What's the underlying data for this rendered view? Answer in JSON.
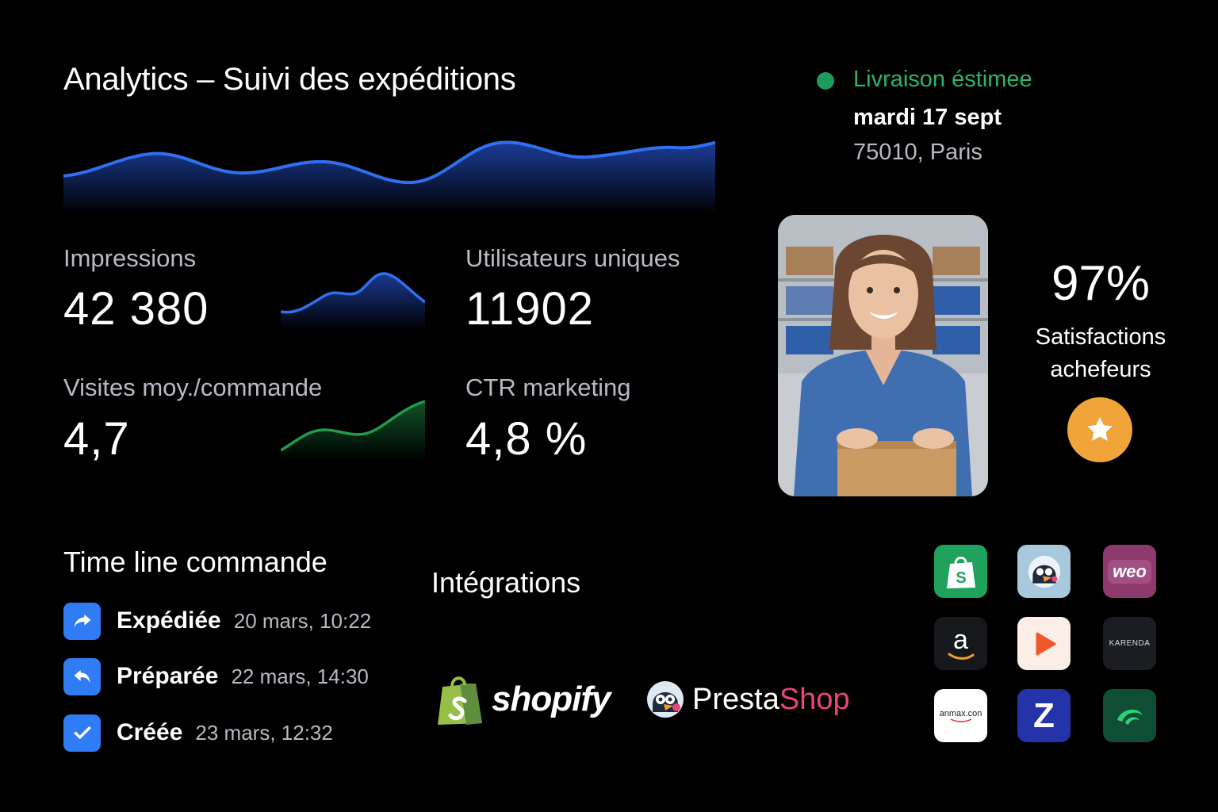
{
  "header": {
    "title": "Analytics – Suivi des expéditions"
  },
  "kpis": [
    {
      "label": "Impressions",
      "value": "42 380"
    },
    {
      "label": "Utilisateurs uniques",
      "value": "11902"
    },
    {
      "label": "Visites moy./commande",
      "value": "4,7"
    },
    {
      "label": "CTR marketing",
      "value": "4,8 %"
    }
  ],
  "delivery": {
    "status": "Livraison éstimee",
    "date": "mardi 17 sept",
    "location": "75010, Paris"
  },
  "satisfaction": {
    "percent": "97%",
    "label_line1": "Satisfactions",
    "label_line2": "achefeurs"
  },
  "timeline": {
    "title": "Time line commande",
    "events": [
      {
        "name": "Expédiée",
        "time": "20 mars, 10:22",
        "icon": "forward-arrow-icon"
      },
      {
        "name": "Préparée",
        "time": "22 mars, 14:30",
        "icon": "return-arrow-icon"
      },
      {
        "name": "Créée",
        "time": "23 mars, 12:32",
        "icon": "checkmark-icon"
      }
    ]
  },
  "integrations": {
    "title": "Intégrations",
    "shopify_word": "shopify",
    "presta_word_a": "Presta",
    "presta_word_b": "Shop",
    "tiles": [
      {
        "name": "shopify-tile",
        "bg": "#1fa35c"
      },
      {
        "name": "prestashop-tile",
        "bg": "#a8c8de"
      },
      {
        "name": "woocommerce-tile",
        "bg": "#8e3a6e",
        "text": "weo"
      },
      {
        "name": "amazon-tile",
        "bg": "#16181c",
        "text": "a"
      },
      {
        "name": "play-tile",
        "bg": "#fbeee6"
      },
      {
        "name": "karenda-tile",
        "bg": "#1b1d22",
        "text": "KARENDA"
      },
      {
        "name": "anmax-tile",
        "bg": "#ffffff",
        "text": "anmax.con"
      },
      {
        "name": "zalando-tile",
        "bg": "#2434a8",
        "text": "Z"
      },
      {
        "name": "green-wave-tile",
        "bg": "#0f4d34"
      }
    ]
  },
  "colors": {
    "accent_blue": "#2f7cf6",
    "accent_green": "#1f9b5a",
    "star_orange": "#f0a43a"
  }
}
